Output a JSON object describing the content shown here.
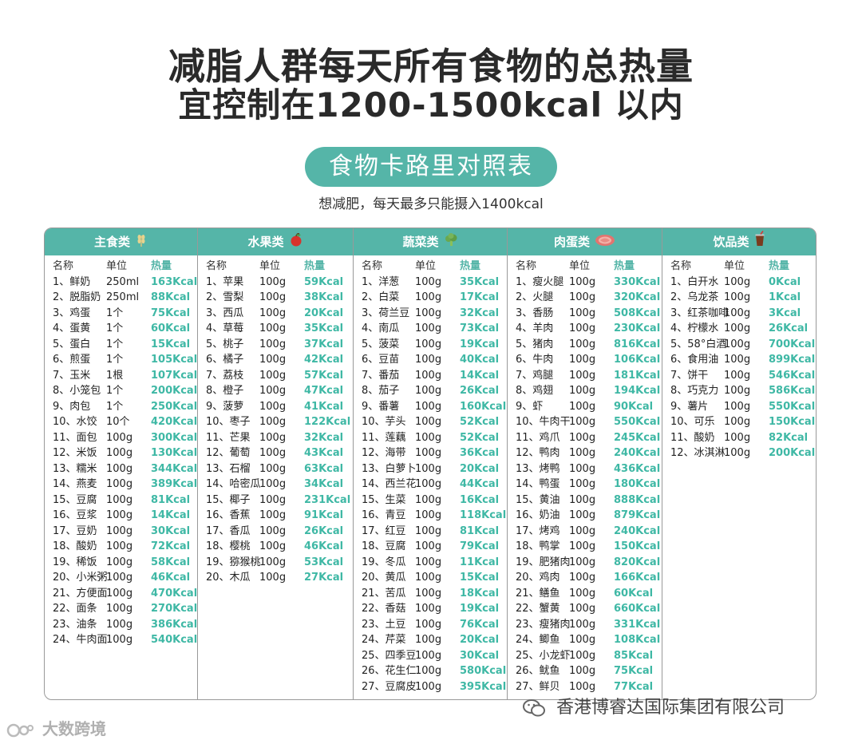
{
  "title_line1": "减脂人群每天所有食物的总热量",
  "title_line2": "宜控制在1200-1500kcal 以内",
  "pill_text": "食物卡路里对照表",
  "subtitle": "想减肥，每天最多只能摄入1400kcal",
  "header": {
    "name": "名称",
    "unit": "单位",
    "kcal": "热量"
  },
  "accent": "#55b5a8",
  "categories": [
    {
      "title": "主食类",
      "icon": "wheat-icon",
      "rows": [
        [
          "1、鲜奶",
          "250ml",
          "163Kcal"
        ],
        [
          "2、脱脂奶",
          "250ml",
          "88Kcal"
        ],
        [
          "3、鸡蛋",
          "1个",
          "75Kcal"
        ],
        [
          "4、蛋黄",
          "1个",
          "60Kcal"
        ],
        [
          "5、蛋白",
          "1个",
          "15Kcal"
        ],
        [
          "6、煎蛋",
          "1个",
          "105Kcal"
        ],
        [
          "7、玉米",
          "1根",
          "107Kcal"
        ],
        [
          "8、小笼包",
          "1个",
          "200Kcal"
        ],
        [
          "9、肉包",
          "1个",
          "250Kcal"
        ],
        [
          "10、水饺",
          "10个",
          "420Kcal"
        ],
        [
          "11、面包",
          "100g",
          "300Kcal"
        ],
        [
          "12、米饭",
          "100g",
          "130Kcal"
        ],
        [
          "13、糯米",
          "100g",
          "344Kcal"
        ],
        [
          "14、燕麦",
          "100g",
          "389Kcal"
        ],
        [
          "15、豆腐",
          "100g",
          "81Kcal"
        ],
        [
          "16、豆浆",
          "100g",
          "14Kcal"
        ],
        [
          "17、豆奶",
          "100g",
          "30Kcal"
        ],
        [
          "18、酸奶",
          "100g",
          "72Kcal"
        ],
        [
          "19、稀饭",
          "100g",
          "58Kcal"
        ],
        [
          "20、小米粥",
          "100g",
          "46Kcal"
        ],
        [
          "21、方便面",
          "100g",
          "470Kcal"
        ],
        [
          "22、面条",
          "100g",
          "270Kcal"
        ],
        [
          "23、油条",
          "100g",
          "386Kcal"
        ],
        [
          "24、牛肉面",
          "100g",
          "540Kcal"
        ]
      ]
    },
    {
      "title": "水果类",
      "icon": "apple-icon",
      "rows": [
        [
          "1、苹果",
          "100g",
          "59Kcal"
        ],
        [
          "2、雪梨",
          "100g",
          "38Kcal"
        ],
        [
          "3、西瓜",
          "100g",
          "20Kcal"
        ],
        [
          "4、草莓",
          "100g",
          "35Kcal"
        ],
        [
          "5、桃子",
          "100g",
          "37Kcal"
        ],
        [
          "6、橘子",
          "100g",
          "42Kcal"
        ],
        [
          "7、荔枝",
          "100g",
          "57Kcal"
        ],
        [
          "8、橙子",
          "100g",
          "47Kcal"
        ],
        [
          "9、菠萝",
          "100g",
          "41Kcal"
        ],
        [
          "10、枣子",
          "100g",
          "122Kcal"
        ],
        [
          "11、芒果",
          "100g",
          "32Kcal"
        ],
        [
          "12、葡萄",
          "100g",
          "43Kcal"
        ],
        [
          "13、石榴",
          "100g",
          "63Kcal"
        ],
        [
          "14、哈密瓜",
          "100g",
          "34Kcal"
        ],
        [
          "15、椰子",
          "100g",
          "231Kcal"
        ],
        [
          "16、香蕉",
          "100g",
          "91Kcal"
        ],
        [
          "17、香瓜",
          "100g",
          "26Kcal"
        ],
        [
          "18、樱桃",
          "100g",
          "46Kcal"
        ],
        [
          "19、猕猴桃",
          "100g",
          "53Kcal"
        ],
        [
          "20、木瓜",
          "100g",
          "27Kcal"
        ]
      ]
    },
    {
      "title": "蔬菜类",
      "icon": "broccoli-icon",
      "rows": [
        [
          "1、洋葱",
          "100g",
          "35Kcal"
        ],
        [
          "2、白菜",
          "100g",
          "17Kcal"
        ],
        [
          "3、荷兰豆",
          "100g",
          "32Kcal"
        ],
        [
          "4、南瓜",
          "100g",
          "73Kcal"
        ],
        [
          "5、菠菜",
          "100g",
          "19Kcal"
        ],
        [
          "6、豆苗",
          "100g",
          "40Kcal"
        ],
        [
          "7、番茄",
          "100g",
          "14Kcal"
        ],
        [
          "8、茄子",
          "100g",
          "26Kcal"
        ],
        [
          "9、番薯",
          "100g",
          "160Kcal"
        ],
        [
          "10、芋头",
          "100g",
          "52Kcal"
        ],
        [
          "11、莲藕",
          "100g",
          "52Kcal"
        ],
        [
          "12、海带",
          "100g",
          "36Kcal"
        ],
        [
          "13、白萝卜",
          "100g",
          "20Kcal"
        ],
        [
          "14、西兰花",
          "100g",
          "44Kcal"
        ],
        [
          "15、生菜",
          "100g",
          "16Kcal"
        ],
        [
          "16、青豆",
          "100g",
          "118Kcal"
        ],
        [
          "17、红豆",
          "100g",
          "81Kcal"
        ],
        [
          "18、豆腐",
          "100g",
          "79Kcal"
        ],
        [
          "19、冬瓜",
          "100g",
          "11Kcal"
        ],
        [
          "20、黄瓜",
          "100g",
          "15Kcal"
        ],
        [
          "21、苦瓜",
          "100g",
          "18Kcal"
        ],
        [
          "22、香菇",
          "100g",
          "19Kcal"
        ],
        [
          "23、土豆",
          "100g",
          "76Kcal"
        ],
        [
          "24、芹菜",
          "100g",
          "20Kcal"
        ],
        [
          "25、四季豆",
          "100g",
          "30Kcal"
        ],
        [
          "26、花生仁",
          "100g",
          "580Kcal"
        ],
        [
          "27、豆腐皮",
          "100g",
          "395Kcal"
        ]
      ]
    },
    {
      "title": "肉蛋类",
      "icon": "meat-icon",
      "rows": [
        [
          "1、瘦火腿",
          "100g",
          "330Kcal"
        ],
        [
          "2、火腿",
          "100g",
          "320Kcal"
        ],
        [
          "3、香肠",
          "100g",
          "508Kcal"
        ],
        [
          "4、羊肉",
          "100g",
          "230Kcal"
        ],
        [
          "5、猪肉",
          "100g",
          "816Kcal"
        ],
        [
          "6、牛肉",
          "100g",
          "106Kcal"
        ],
        [
          "7、鸡腿",
          "100g",
          "181Kcal"
        ],
        [
          "8、鸡翅",
          "100g",
          "194Kcal"
        ],
        [
          "9、虾",
          "100g",
          "90Kcal"
        ],
        [
          "10、牛肉干",
          "100g",
          "550Kcal"
        ],
        [
          "11、鸡爪",
          "100g",
          "245Kcal"
        ],
        [
          "12、鸭肉",
          "100g",
          "240Kcal"
        ],
        [
          "13、烤鸭",
          "100g",
          "436Kcal"
        ],
        [
          "14、鸭蛋",
          "100g",
          "180Kcal"
        ],
        [
          "15、黄油",
          "100g",
          "888Kcal"
        ],
        [
          "16、奶油",
          "100g",
          "879Kcal"
        ],
        [
          "17、烤鸡",
          "100g",
          "240Kcal"
        ],
        [
          "18、鸭掌",
          "100g",
          "150Kcal"
        ],
        [
          "19、肥猪肉",
          "100g",
          "820Kcal"
        ],
        [
          "20、鸡肉",
          "100g",
          "166Kcal"
        ],
        [
          "21、鳝鱼",
          "100g",
          "60Kcal"
        ],
        [
          "22、蟹黄",
          "100g",
          "660Kcal"
        ],
        [
          "23、瘦猪肉",
          "100g",
          "331Kcal"
        ],
        [
          "24、鲫鱼",
          "100g",
          "108Kcal"
        ],
        [
          "25、小龙虾",
          "100g",
          "85Kcal"
        ],
        [
          "26、鱿鱼",
          "100g",
          "75Kcal"
        ],
        [
          "27、鲜贝",
          "100g",
          "77Kcal"
        ]
      ]
    },
    {
      "title": "饮品类",
      "icon": "drink-cup-icon",
      "rows": [
        [
          "1、白开水",
          "100g",
          "0Kcal"
        ],
        [
          "2、乌龙茶",
          "100g",
          "1Kcal"
        ],
        [
          "3、红茶咖啡",
          "100g",
          "3Kcal"
        ],
        [
          "4、柠檬水",
          "100g",
          "26Kcal"
        ],
        [
          "5、58°白酒",
          "100g",
          "700Kcal"
        ],
        [
          "6、食用油",
          "100g",
          "899Kcal"
        ],
        [
          "7、饼干",
          "100g",
          "546Kcal"
        ],
        [
          "8、巧克力",
          "100g",
          "586Kcal"
        ],
        [
          "9、薯片",
          "100g",
          "550Kcal"
        ],
        [
          "10、可乐",
          "100g",
          "150Kcal"
        ],
        [
          "11、酸奶",
          "100g",
          "82Kcal"
        ],
        [
          "12、冰淇淋",
          "100g",
          "200Kcal"
        ]
      ]
    }
  ],
  "footer_company": "香港博睿达国际集团有限公司",
  "footer_watermark": "大数跨境"
}
